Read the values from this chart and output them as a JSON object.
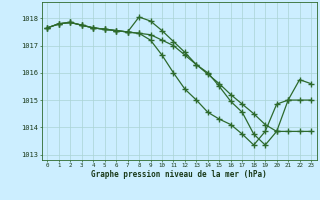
{
  "background_color": "#cceeff",
  "grid_color": "#aad4d4",
  "line_color": "#2d6a2d",
  "xlabel": "Graphe pression niveau de la mer (hPa)",
  "xlim": [
    -0.5,
    23.5
  ],
  "ylim": [
    1012.8,
    1018.6
  ],
  "yticks": [
    1013,
    1014,
    1015,
    1016,
    1017,
    1018
  ],
  "xticks": [
    0,
    1,
    2,
    3,
    4,
    5,
    6,
    7,
    8,
    9,
    10,
    11,
    12,
    13,
    14,
    15,
    16,
    17,
    18,
    19,
    20,
    21,
    22,
    23
  ],
  "line1_x": [
    0,
    1,
    2,
    3,
    4,
    5,
    6,
    7,
    8,
    9,
    10,
    11,
    12,
    13,
    14,
    15,
    16,
    17,
    18,
    19,
    20,
    21,
    22,
    23
  ],
  "line1_y": [
    1017.65,
    1017.8,
    1017.85,
    1017.75,
    1017.65,
    1017.6,
    1017.55,
    1017.5,
    1018.05,
    1017.9,
    1017.55,
    1017.15,
    1016.75,
    1016.3,
    1016.0,
    1015.5,
    1014.95,
    1014.55,
    1013.75,
    1013.35,
    1013.85,
    1015.0,
    1015.75,
    1015.6
  ],
  "line2_x": [
    0,
    1,
    2,
    3,
    4,
    5,
    6,
    7,
    8,
    9,
    10,
    11,
    12,
    13,
    14,
    15,
    16,
    17,
    18,
    19,
    20,
    21,
    22,
    23
  ],
  "line2_y": [
    1017.65,
    1017.8,
    1017.85,
    1017.75,
    1017.65,
    1017.6,
    1017.55,
    1017.5,
    1017.45,
    1017.4,
    1017.2,
    1017.0,
    1016.65,
    1016.3,
    1015.95,
    1015.6,
    1015.2,
    1014.85,
    1014.5,
    1014.1,
    1013.85,
    1013.85,
    1013.85,
    1013.85
  ],
  "line3_x": [
    0,
    1,
    2,
    3,
    4,
    5,
    6,
    7,
    8,
    9,
    10,
    11,
    12,
    13,
    14,
    15,
    16,
    17,
    18,
    19,
    20,
    21,
    22,
    23
  ],
  "line3_y": [
    1017.65,
    1017.8,
    1017.85,
    1017.75,
    1017.65,
    1017.6,
    1017.55,
    1017.5,
    1017.45,
    1017.2,
    1016.65,
    1016.0,
    1015.4,
    1015.0,
    1014.55,
    1014.3,
    1014.1,
    1013.75,
    1013.35,
    1013.85,
    1014.85,
    1015.0,
    1015.0,
    1015.0
  ]
}
